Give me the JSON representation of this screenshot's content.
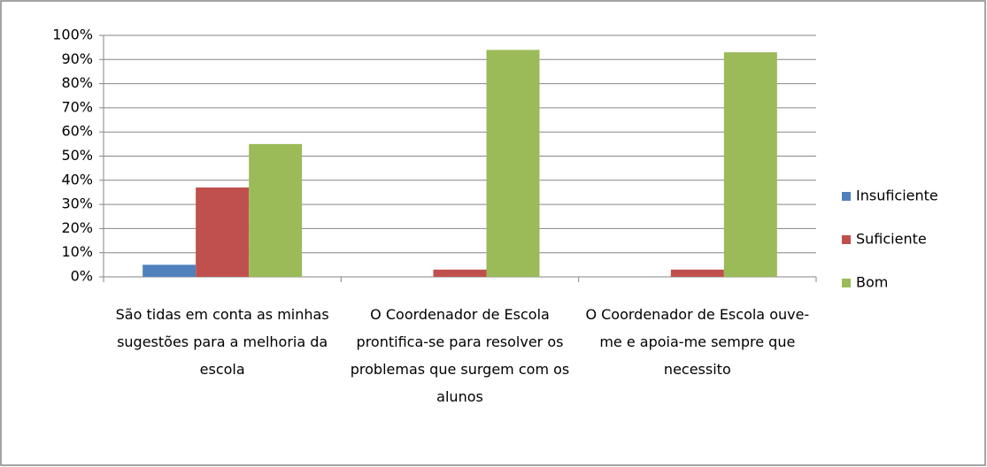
{
  "chart_data": {
    "type": "bar",
    "categories": [
      "São tidas em conta as minhas sugestões para a melhoria da escola",
      "O Coordenador de Escola prontifica-se para resolver os problemas que surgem com os alunos",
      "O Coordenador de Escola ouve-me e apoia-me sempre que necessito"
    ],
    "series": [
      {
        "name": "Insuficiente",
        "color": "#4f81bd",
        "values": [
          5,
          0,
          0
        ]
      },
      {
        "name": "Suficiente",
        "color": "#c0504d",
        "values": [
          37,
          3,
          3
        ]
      },
      {
        "name": "Bom",
        "color": "#9bbb59",
        "values": [
          55,
          94,
          93
        ]
      }
    ],
    "ylim": [
      0,
      100
    ],
    "yticks": [
      {
        "value": 0,
        "label": "0%"
      },
      {
        "value": 10,
        "label": "10%"
      },
      {
        "value": 20,
        "label": "20%"
      },
      {
        "value": 30,
        "label": "30%"
      },
      {
        "value": 40,
        "label": "40%"
      },
      {
        "value": 50,
        "label": "50%"
      },
      {
        "value": 60,
        "label": "60%"
      },
      {
        "value": 70,
        "label": "70%"
      },
      {
        "value": 80,
        "label": "80%"
      },
      {
        "value": 90,
        "label": "90%"
      },
      {
        "value": 100,
        "label": "100%"
      }
    ],
    "grid": true,
    "legend": "right"
  }
}
